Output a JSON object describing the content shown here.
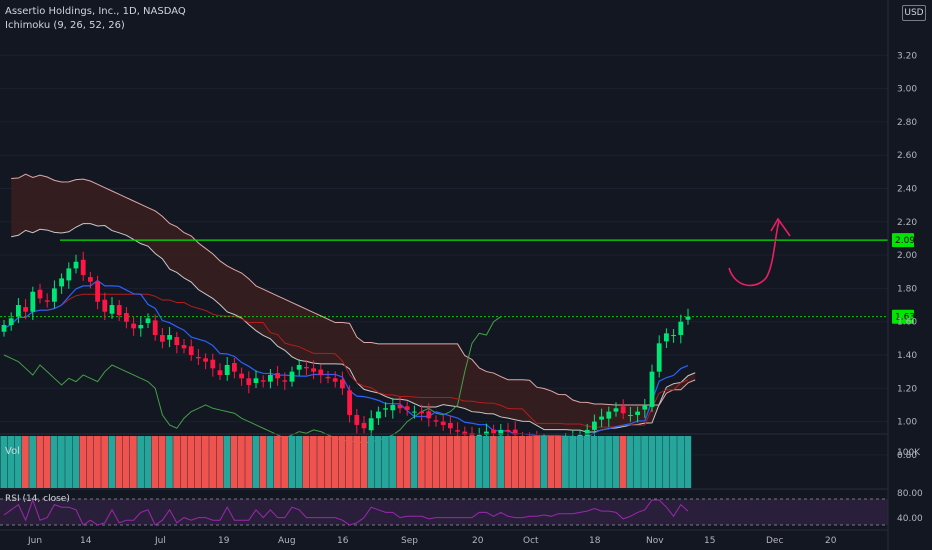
{
  "header": {
    "symbol_line": "Assertio Holdings, Inc., 1D, NASDAQ",
    "indicator_line": "Ichimoku (9, 26, 52, 26)",
    "currency": "USD"
  },
  "volume_label": "Vol",
  "rsi_label": "RSI (14, close)",
  "colors": {
    "background": "#131722",
    "up": "#00e676",
    "down": "#ff1744",
    "vol_up": "#26a69a",
    "vol_down": "#ef5350",
    "level": "#00e600",
    "tenkan": "#2962ff",
    "kijun": "#b71c1c",
    "chikou": "#43a047",
    "span_a": "#c8c8c8",
    "span_b": "#e0a8a8",
    "cloud": "#3a1e1e",
    "rsi": "#9c27b0",
    "arrow": "#e91e63"
  },
  "chart_data": {
    "type": "candlestick",
    "title": "Assertio Holdings, Inc., 1D, NASDAQ",
    "price_axis": {
      "ticks": [
        "0.80",
        "1.00",
        "1.20",
        "1.40",
        "1.60",
        "1.80",
        "2.00",
        "2.20",
        "2.40",
        "2.60",
        "2.80",
        "3.00",
        "3.20"
      ],
      "ylim": [
        0.78,
        3.25
      ]
    },
    "time_axis": {
      "ticks": [
        "Jun",
        "14",
        "Jul",
        "19",
        "Aug",
        "16",
        "Sep",
        "20",
        "Oct",
        "18",
        "Nov",
        "15",
        "Dec",
        "20"
      ]
    },
    "horizontal_levels": [
      {
        "value": 2.09,
        "label": "2.09"
      },
      {
        "value": 1.63,
        "label": "1.63"
      }
    ],
    "close": [
      1.58,
      1.62,
      1.7,
      1.66,
      1.78,
      1.74,
      1.72,
      1.8,
      1.86,
      1.92,
      1.96,
      1.88,
      1.84,
      1.72,
      1.66,
      1.7,
      1.64,
      1.6,
      1.56,
      1.58,
      1.62,
      1.52,
      1.48,
      1.52,
      1.46,
      1.44,
      1.4,
      1.38,
      1.36,
      1.32,
      1.28,
      1.34,
      1.3,
      1.26,
      1.22,
      1.26,
      1.24,
      1.28,
      1.26,
      1.24,
      1.3,
      1.34,
      1.32,
      1.3,
      1.28,
      1.26,
      1.24,
      1.2,
      1.04,
      0.98,
      0.96,
      1.02,
      1.06,
      1.08,
      1.1,
      1.08,
      1.07,
      1.06,
      1.05,
      1.02,
      1.0,
      0.98,
      0.96,
      0.94,
      0.92,
      0.9,
      0.92,
      0.94,
      0.93,
      0.95,
      0.94,
      0.92,
      0.9,
      0.89,
      0.88,
      0.88,
      0.87,
      0.88,
      0.89,
      0.9,
      0.92,
      0.95,
      1.0,
      1.03,
      1.06,
      1.08,
      1.05,
      1.04,
      1.06,
      1.1,
      1.3,
      1.47,
      1.53,
      1.52,
      1.6,
      1.63
    ],
    "series": [
      {
        "name": "Volume",
        "scale_label": "100K"
      },
      {
        "name": "RSI (14, close)",
        "ticks": [
          "40.00",
          "80.00"
        ]
      }
    ]
  }
}
